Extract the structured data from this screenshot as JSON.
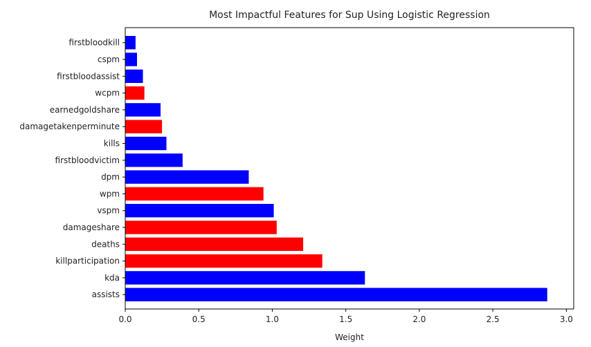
{
  "chart_data": {
    "type": "bar",
    "orientation": "horizontal",
    "title": "Most Impactful Features for Sup Using Logistic Regression",
    "xlabel": "Weight",
    "ylabel": "",
    "xlim": [
      0,
      3.05
    ],
    "xticks": [
      0.0,
      0.5,
      1.0,
      1.5,
      2.0,
      2.5,
      3.0
    ],
    "xtick_labels": [
      "0.0",
      "0.5",
      "1.0",
      "1.5",
      "2.0",
      "2.5",
      "3.0"
    ],
    "grid": false,
    "legend": "none",
    "categories": [
      "assists",
      "kda",
      "killparticipation",
      "deaths",
      "damageshare",
      "vspm",
      "wpm",
      "dpm",
      "firstbloodvictim",
      "kills",
      "damagetakenperminute",
      "earnedgoldshare",
      "wcpm",
      "firstbloodassist",
      "cspm",
      "firstbloodkill"
    ],
    "values": [
      2.87,
      1.63,
      1.34,
      1.21,
      1.03,
      1.01,
      0.94,
      0.84,
      0.39,
      0.28,
      0.25,
      0.24,
      0.13,
      0.12,
      0.08,
      0.07
    ],
    "bar_colors": [
      "#0000ff",
      "#0000ff",
      "#ff0000",
      "#ff0000",
      "#ff0000",
      "#0000ff",
      "#ff0000",
      "#0000ff",
      "#0000ff",
      "#0000ff",
      "#ff0000",
      "#0000ff",
      "#ff0000",
      "#0000ff",
      "#0000ff",
      "#0000ff"
    ]
  }
}
